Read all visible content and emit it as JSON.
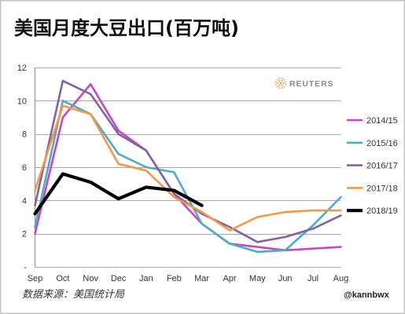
{
  "chart_data": {
    "type": "line",
    "title": "美国月度大豆出口(百万吨)",
    "categories": [
      "Sep",
      "Oct",
      "Nov",
      "Dec",
      "Jan",
      "Feb",
      "Mar",
      "Apr",
      "May",
      "Jun",
      "Jul",
      "Aug"
    ],
    "ylim": [
      0,
      12
    ],
    "yticks": [
      {
        "value": 0,
        "label": "-"
      },
      {
        "value": 2,
        "label": "2"
      },
      {
        "value": 4,
        "label": "4"
      },
      {
        "value": 6,
        "label": "6"
      },
      {
        "value": 8,
        "label": "8"
      },
      {
        "value": 10,
        "label": "10"
      },
      {
        "value": 12,
        "label": "12"
      }
    ],
    "grid": true,
    "legend_position": "right",
    "series": [
      {
        "name": "2014/15",
        "color": "#c846c0",
        "values": [
          2.0,
          9.0,
          11.0,
          8.2,
          7.0,
          4.4,
          2.6,
          1.4,
          1.2,
          1.0,
          1.1,
          1.2
        ]
      },
      {
        "name": "2015/16",
        "color": "#4bacc6",
        "values": [
          2.4,
          10.0,
          9.2,
          6.8,
          6.0,
          5.7,
          2.6,
          1.4,
          0.9,
          1.0,
          2.5,
          4.2
        ]
      },
      {
        "name": "2016/17",
        "color": "#8064a2",
        "values": [
          3.7,
          11.2,
          10.4,
          8.0,
          7.0,
          4.4,
          3.2,
          2.4,
          1.5,
          1.8,
          2.3,
          3.1
        ]
      },
      {
        "name": "2017/18",
        "color": "#f79646",
        "values": [
          4.6,
          9.7,
          9.2,
          6.2,
          5.8,
          4.2,
          3.3,
          2.2,
          3.0,
          3.3,
          3.4,
          3.4
        ]
      },
      {
        "name": "2018/19",
        "color": "#000000",
        "values": [
          3.2,
          5.6,
          5.1,
          4.1,
          4.8,
          4.6,
          3.7,
          null,
          null,
          null,
          null,
          null
        ]
      }
    ]
  },
  "source": "数据来源：美国统计局",
  "credit": "@kannbwx",
  "logo": {
    "text": "REUTERS",
    "icon": "reuters-dot-circle-icon",
    "color": "#f5a041"
  }
}
